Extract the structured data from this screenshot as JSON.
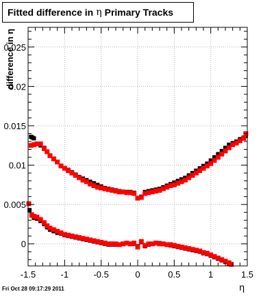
{
  "title": {
    "prefix": "Fitted difference in",
    "symbol": "η",
    "suffix": "Primary Tracks"
  },
  "footer": {
    "timestamp": "Fri Oct 28 09:17:29 2011"
  },
  "colors": {
    "data": "#000000",
    "fit": "#ff0000",
    "grid": "#b4b4b4",
    "axis": "#000000"
  },
  "chart_data": {
    "type": "scatter",
    "title": "Fitted difference in η Primary Tracks",
    "xlabel": "η",
    "ylabel": "difference in η",
    "xlim": [
      -1.5,
      1.5
    ],
    "ylim": [
      -0.0028,
      0.0275
    ],
    "grid": true,
    "x_ticks": [
      -1.5,
      -1,
      -0.5,
      0,
      0.5,
      1,
      1.5
    ],
    "x_tick_labels": [
      "-1.5",
      "-1",
      "-0.5",
      "0",
      "0.5",
      "1",
      "1.5"
    ],
    "y_ticks": [
      0,
      0.005,
      0.01,
      0.015,
      0.02,
      0.025
    ],
    "y_tick_labels": [
      "0",
      "0.005",
      "0.01",
      "0.015",
      "0.02",
      "0.025"
    ],
    "series": [
      {
        "role": "data",
        "color": "#000000",
        "marker_size": 6,
        "x": [
          -1.46,
          -1.44,
          -1.42,
          -1.38,
          -1.33,
          -1.28,
          -1.24,
          -1.2,
          -1.15,
          -1.1,
          -1.05,
          -1.0,
          -0.95,
          -0.9,
          -0.85,
          -0.8,
          -0.75,
          -0.7,
          -0.65,
          -0.6,
          -0.55,
          -0.5,
          -0.45,
          -0.4,
          -0.35,
          -0.3,
          -0.25,
          -0.2,
          -0.15,
          -0.1,
          -0.05,
          0.0,
          0.05,
          0.1,
          0.15,
          0.2,
          0.25,
          0.3,
          0.35,
          0.4,
          0.45,
          0.5,
          0.55,
          0.6,
          0.65,
          0.7,
          0.75,
          0.8,
          0.85,
          0.9,
          0.95,
          1.0,
          1.05,
          1.1,
          1.15,
          1.2,
          1.25,
          1.3,
          1.35,
          1.4,
          1.45,
          1.48
        ],
        "y": [
          0.0136,
          0.0135,
          0.0134,
          0.0127,
          0.0125,
          0.0122,
          0.0117,
          0.0112,
          0.0108,
          0.0104,
          0.0099,
          0.0096,
          0.0094,
          0.0091,
          0.0088,
          0.0085,
          0.0083,
          0.0081,
          0.0079,
          0.0077,
          0.0075,
          0.0073,
          0.0071,
          0.007,
          0.0069,
          0.0068,
          0.0067,
          0.0066,
          0.0066,
          0.0066,
          0.0065,
          0.0058,
          0.006,
          0.0066,
          0.0067,
          0.0068,
          0.0069,
          0.007,
          0.0072,
          0.0074,
          0.0076,
          0.0078,
          0.008,
          0.0082,
          0.0084,
          0.0087,
          0.009,
          0.0093,
          0.0096,
          0.0099,
          0.0102,
          0.0106,
          0.011,
          0.0114,
          0.0118,
          0.0122,
          0.0126,
          0.0128,
          0.013,
          0.0133,
          0.0135,
          0.0137
        ]
      },
      {
        "role": "fit",
        "color": "#ff0000",
        "marker_size": 7,
        "x": [
          -1.46,
          -1.42,
          -1.38,
          -1.33,
          -1.28,
          -1.24,
          -1.2,
          -1.15,
          -1.1,
          -1.05,
          -1.0,
          -0.95,
          -0.9,
          -0.85,
          -0.8,
          -0.75,
          -0.7,
          -0.65,
          -0.6,
          -0.55,
          -0.5,
          -0.45,
          -0.4,
          -0.35,
          -0.3,
          -0.25,
          -0.2,
          -0.15,
          -0.1,
          -0.05,
          0.0,
          0.05,
          0.1,
          0.15,
          0.2,
          0.25,
          0.3,
          0.35,
          0.4,
          0.45,
          0.5,
          0.55,
          0.6,
          0.65,
          0.7,
          0.75,
          0.8,
          0.85,
          0.9,
          0.95,
          1.0,
          1.05,
          1.1,
          1.15,
          1.2,
          1.25,
          1.3,
          1.35,
          1.4,
          1.45,
          1.48
        ],
        "y": [
          0.0125,
          0.0126,
          0.0127,
          0.0127,
          0.0121,
          0.0117,
          0.0112,
          0.0108,
          0.0104,
          0.0099,
          0.0096,
          0.0093,
          0.009,
          0.0087,
          0.0084,
          0.0081,
          0.0079,
          0.0076,
          0.0074,
          0.0072,
          0.0071,
          0.007,
          0.0069,
          0.0068,
          0.0067,
          0.0066,
          0.0066,
          0.0065,
          0.0065,
          0.0064,
          0.0058,
          0.0059,
          0.0064,
          0.0065,
          0.0066,
          0.0067,
          0.0068,
          0.007,
          0.0072,
          0.0074,
          0.0075,
          0.0077,
          0.0079,
          0.0081,
          0.0084,
          0.0087,
          0.009,
          0.0093,
          0.0096,
          0.0099,
          0.0102,
          0.0106,
          0.011,
          0.0114,
          0.0118,
          0.0122,
          0.0126,
          0.0128,
          0.0131,
          0.0134,
          0.014
        ]
      },
      {
        "role": "data",
        "color": "#000000",
        "marker_size": 6,
        "x": [
          -1.48,
          -1.45,
          -1.42,
          -1.38,
          -1.33,
          -1.28,
          -1.24,
          -1.2,
          -1.15,
          -1.1,
          -1.05,
          -1.0,
          -0.95,
          -0.9,
          -0.85,
          -0.8,
          -0.75,
          -0.7,
          -0.65,
          -0.6,
          -0.55,
          -0.5,
          -0.45,
          -0.4,
          -0.35,
          -0.3,
          -0.25,
          -0.2,
          -0.15,
          -0.1,
          -0.05,
          0.0,
          0.05,
          0.1,
          0.15,
          0.2,
          0.25,
          0.3,
          0.35,
          0.4,
          0.45,
          0.5,
          0.55,
          0.6,
          0.65,
          0.7,
          0.75,
          0.8,
          0.85,
          0.9,
          0.95,
          1.0,
          1.05,
          1.1,
          1.15,
          1.2,
          1.25,
          1.28
        ],
        "y": [
          0.0043,
          0.0036,
          0.0033,
          0.0032,
          0.0029,
          0.0025,
          0.0021,
          0.0018,
          0.0016,
          0.0014,
          0.0013,
          0.0011,
          0.001,
          0.0009,
          0.0008,
          0.0007,
          0.0006,
          0.0005,
          0.0004,
          0.0003,
          0.0002,
          0.0001,
          0.0,
          -0.0001,
          -0.0001,
          -0.0001,
          -0.0001,
          0.0,
          0.0001,
          0.0,
          0.0,
          -0.0003,
          0.0002,
          -0.0003,
          -0.0001,
          0.0,
          0.0001,
          0.0001,
          0.0,
          -0.0001,
          -0.0002,
          -0.0003,
          -0.0004,
          -0.0005,
          -0.0006,
          -0.0007,
          -0.0008,
          -0.0009,
          -0.001,
          -0.0012,
          -0.0013,
          -0.0015,
          -0.0017,
          -0.0019,
          -0.0021,
          -0.0023,
          -0.0025,
          -0.0026
        ]
      },
      {
        "role": "fit",
        "color": "#ff0000",
        "marker_size": 7,
        "x": [
          -1.49,
          -1.45,
          -1.42,
          -1.38,
          -1.33,
          -1.28,
          -1.24,
          -1.2,
          -1.15,
          -1.1,
          -1.05,
          -1.0,
          -0.95,
          -0.9,
          -0.85,
          -0.8,
          -0.75,
          -0.7,
          -0.65,
          -0.6,
          -0.55,
          -0.5,
          -0.45,
          -0.4,
          -0.35,
          -0.3,
          -0.25,
          -0.2,
          -0.15,
          -0.1,
          -0.05,
          0.0,
          0.05,
          0.1,
          0.15,
          0.2,
          0.25,
          0.3,
          0.35,
          0.4,
          0.45,
          0.5,
          0.55,
          0.6,
          0.65,
          0.7,
          0.75,
          0.8,
          0.85,
          0.9,
          0.95,
          1.0,
          1.05,
          1.1,
          1.15,
          1.2,
          1.25,
          1.28
        ],
        "y": [
          0.0051,
          0.0037,
          0.0035,
          0.0034,
          0.0031,
          0.0027,
          0.0023,
          0.002,
          0.0018,
          0.0016,
          0.0014,
          0.0012,
          0.0011,
          0.001,
          0.0009,
          0.0008,
          0.0007,
          0.0006,
          0.0005,
          0.0004,
          0.0003,
          0.0002,
          0.0001,
          0.0,
          0.0,
          0.0,
          -0.0001,
          0.0,
          0.0001,
          0.0,
          0.0001,
          -0.0004,
          0.0003,
          -0.0002,
          0.0,
          0.0,
          0.0001,
          0.0,
          0.0,
          -0.0001,
          -0.0001,
          -0.0002,
          -0.0003,
          -0.0004,
          -0.0005,
          -0.0006,
          -0.0007,
          -0.0008,
          -0.0009,
          -0.0011,
          -0.0012,
          -0.0014,
          -0.0016,
          -0.0018,
          -0.002,
          -0.0022,
          -0.0024,
          -0.0026
        ]
      }
    ]
  }
}
